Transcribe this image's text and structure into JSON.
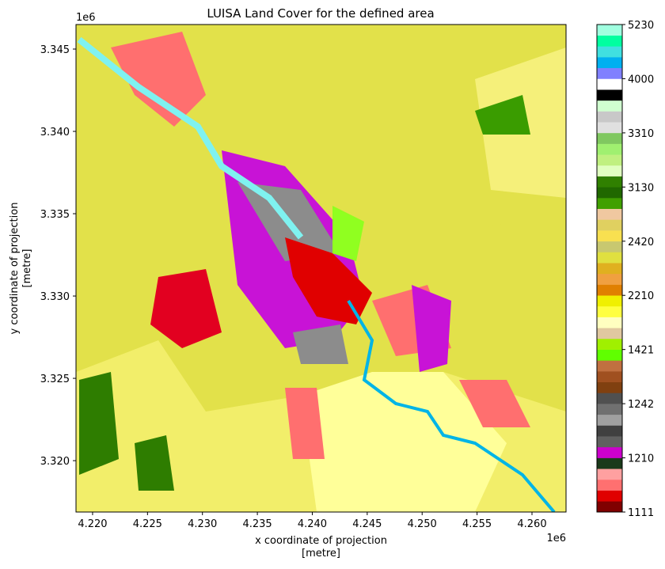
{
  "chart_data": {
    "type": "raster",
    "title": "LUISA Land Cover for the defined area",
    "x_label": "x coordinate of projection\n[metre]",
    "y_label": "y coordinate of projection\n[metre]",
    "x_offset": "1e6",
    "y_offset": "1e6",
    "xlim": [
      4.21849,
      4.2631
    ],
    "ylim": [
      3.31688,
      3.34649
    ],
    "xticks": [
      {
        "value": 4.22,
        "label": "4.220"
      },
      {
        "value": 4.225,
        "label": "4.225"
      },
      {
        "value": 4.23,
        "label": "4.230"
      },
      {
        "value": 4.235,
        "label": "4.235"
      },
      {
        "value": 4.24,
        "label": "4.240"
      },
      {
        "value": 4.245,
        "label": "4.245"
      },
      {
        "value": 4.25,
        "label": "4.250"
      },
      {
        "value": 4.255,
        "label": "4.255"
      },
      {
        "value": 4.26,
        "label": "4.260"
      }
    ],
    "yticks": [
      {
        "value": 3.32,
        "label": "3.320"
      },
      {
        "value": 3.325,
        "label": "3.325"
      },
      {
        "value": 3.33,
        "label": "3.330"
      },
      {
        "value": 3.335,
        "label": "3.335"
      },
      {
        "value": 3.34,
        "label": "3.340"
      },
      {
        "value": 3.345,
        "label": "3.345"
      }
    ],
    "colorbar_ticks": [
      1111,
      1210,
      1242,
      1421,
      2210,
      2420,
      3130,
      3310,
      4000,
      5230
    ],
    "colorbar_colors": [
      "#800000",
      "#e00000",
      "#ff7070",
      "#ffa0a0",
      "#1a3a1a",
      "#cc00cc",
      "#606060",
      "#404040",
      "#a0a0a0",
      "#707070",
      "#505050",
      "#804010",
      "#a05020",
      "#c07040",
      "#60ff00",
      "#a0f000",
      "#e0c8a0",
      "#ffffc0",
      "#ffff40",
      "#f0f000",
      "#e08000",
      "#f0a040",
      "#e0b020",
      "#e0e040",
      "#c8c870",
      "#f8e050",
      "#e0d060",
      "#f0c8a0",
      "#40a000",
      "#206800",
      "#308000",
      "#e0ffc0",
      "#c0f080",
      "#a0f070",
      "#80c860",
      "#e0e0e0",
      "#c8c8c8",
      "#d0ffd0",
      "#000000",
      "#ffffff",
      "#8080ff",
      "#00b0f0",
      "#40e0e0",
      "#00ffa0",
      "#a0ffe0"
    ]
  }
}
